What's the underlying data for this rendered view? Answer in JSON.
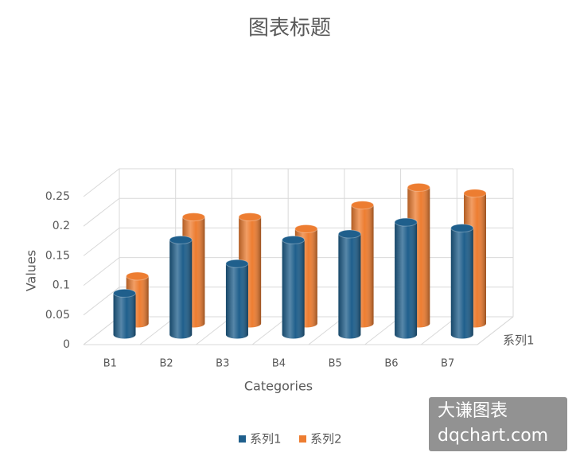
{
  "chart_data": {
    "type": "bar3d",
    "title": "图表标题",
    "x_label": "Categories",
    "y_label": "Values",
    "depth_label": "系列1",
    "categories": [
      "B1",
      "B2",
      "B3",
      "B4",
      "B5",
      "B6",
      "B7"
    ],
    "series": [
      {
        "name": "系列1",
        "color": "#1f5f8c",
        "values": [
          0.07,
          0.16,
          0.12,
          0.16,
          0.17,
          0.19,
          0.18
        ]
      },
      {
        "name": "系列2",
        "color": "#ed7d31",
        "values": [
          0.08,
          0.18,
          0.18,
          0.16,
          0.2,
          0.23,
          0.22
        ]
      }
    ],
    "ylim": [
      0,
      0.25
    ],
    "yticks": [
      0,
      0.05,
      0.1,
      0.15,
      0.2,
      0.25
    ],
    "grid": true,
    "legend": "bottom",
    "watermark": [
      "大谦图表",
      "dqchart.com"
    ]
  }
}
